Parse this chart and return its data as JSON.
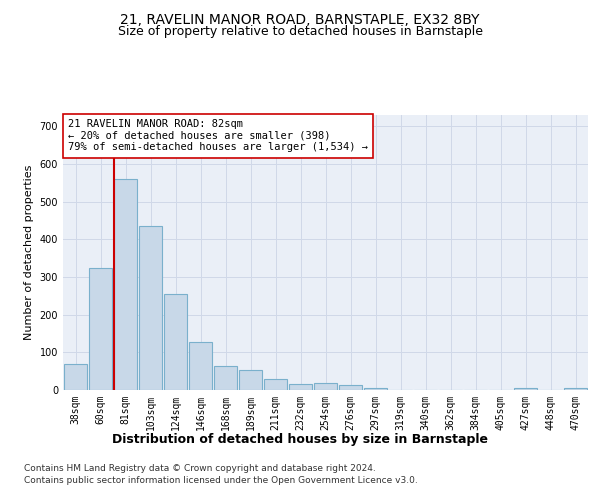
{
  "title1": "21, RAVELIN MANOR ROAD, BARNSTAPLE, EX32 8BY",
  "title2": "Size of property relative to detached houses in Barnstaple",
  "xlabel": "Distribution of detached houses by size in Barnstaple",
  "ylabel": "Number of detached properties",
  "categories": [
    "38sqm",
    "60sqm",
    "81sqm",
    "103sqm",
    "124sqm",
    "146sqm",
    "168sqm",
    "189sqm",
    "211sqm",
    "232sqm",
    "254sqm",
    "276sqm",
    "297sqm",
    "319sqm",
    "340sqm",
    "362sqm",
    "384sqm",
    "405sqm",
    "427sqm",
    "448sqm",
    "470sqm"
  ],
  "values": [
    70,
    325,
    560,
    435,
    255,
    128,
    63,
    52,
    28,
    15,
    18,
    12,
    5,
    0,
    0,
    0,
    0,
    0,
    5,
    0,
    5
  ],
  "bar_color": "#c8d8e8",
  "bar_edgecolor": "#7ab0cc",
  "bar_linewidth": 0.8,
  "property_line_color": "#cc0000",
  "annotation_text": "21 RAVELIN MANOR ROAD: 82sqm\n← 20% of detached houses are smaller (398)\n79% of semi-detached houses are larger (1,534) →",
  "annotation_box_color": "#ffffff",
  "annotation_box_edgecolor": "#cc0000",
  "ylim": [
    0,
    730
  ],
  "yticks": [
    0,
    100,
    200,
    300,
    400,
    500,
    600,
    700
  ],
  "grid_color": "#d0d8e8",
  "plot_bg_color": "#eaeff7",
  "footer1": "Contains HM Land Registry data © Crown copyright and database right 2024.",
  "footer2": "Contains public sector information licensed under the Open Government Licence v3.0.",
  "title1_fontsize": 10,
  "title2_fontsize": 9,
  "xlabel_fontsize": 9,
  "ylabel_fontsize": 8,
  "tick_fontsize": 7,
  "annot_fontsize": 7.5,
  "footer_fontsize": 6.5
}
